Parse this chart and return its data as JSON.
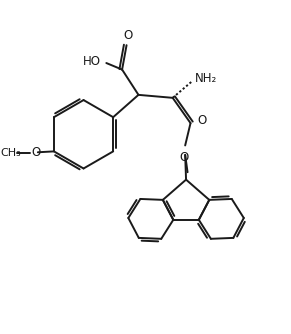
{
  "bg_color": "#ffffff",
  "line_color": "#1a1a1a",
  "line_width": 1.4,
  "text_color": "#1a1a1a",
  "font_size": 8.5,
  "figsize": [
    2.91,
    3.34
  ],
  "dpi": 100,
  "xlim": [
    0,
    9.5
  ],
  "ylim": [
    0,
    10.9
  ]
}
